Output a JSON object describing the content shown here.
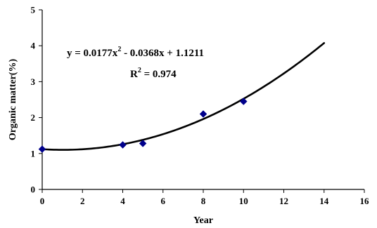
{
  "chart_data": {
    "type": "scatter",
    "title": "",
    "xlabel": "Year",
    "ylabel": "Organic matter(%)",
    "xlim": [
      0,
      16
    ],
    "ylim": [
      0,
      5
    ],
    "xticks": [
      "0",
      "2",
      "4",
      "6",
      "8",
      "10",
      "12",
      "14",
      "16"
    ],
    "yticks": [
      "0",
      "1",
      "2",
      "3",
      "4",
      "5"
    ],
    "grid": false,
    "points": [
      {
        "x": 0,
        "y": 1.12
      },
      {
        "x": 4,
        "y": 1.24
      },
      {
        "x": 5,
        "y": 1.28
      },
      {
        "x": 8,
        "y": 2.1
      },
      {
        "x": 10,
        "y": 2.45
      }
    ],
    "trendline": {
      "type": "polynomial",
      "coefficients": [
        0.0177,
        -0.0368,
        1.1211
      ],
      "x_range": [
        0,
        14
      ],
      "equation_parts": {
        "lhs": "y = 0.0177x",
        "exp": "2",
        "rhs": " - 0.0368x + 1.1211"
      },
      "r2_parts": {
        "lhs": "R",
        "exp": "2",
        "rhs": " = 0.974"
      }
    },
    "colors": {
      "marker": "#00008B",
      "line": "#000000",
      "axis": "#000000"
    }
  }
}
